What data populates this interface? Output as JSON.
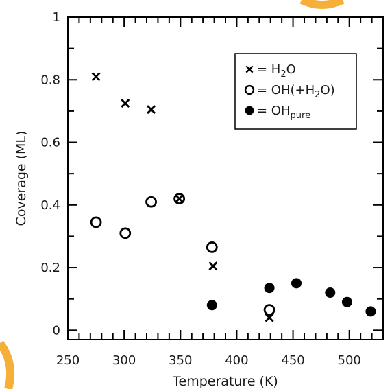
{
  "chart_data": {
    "type": "scatter",
    "xlabel": "Temperature (K)",
    "ylabel": "Coverage (ML)",
    "xlim": [
      250,
      530
    ],
    "ylim": [
      -0.03,
      1.0
    ],
    "xticks": [
      250,
      300,
      350,
      400,
      450,
      500
    ],
    "yticks": [
      0,
      0.2,
      0.4,
      0.6,
      0.8,
      1
    ],
    "xtick_labels": [
      "250",
      "300",
      "350",
      "400",
      "450",
      "500"
    ],
    "ytick_labels": [
      "0",
      "0.2",
      "0.4",
      "0.6",
      "0.8",
      "1"
    ],
    "grid": false,
    "legend_position": "top-right",
    "series": [
      {
        "key": "h2o",
        "marker": "cross",
        "legend": {
          "prefix": "= H",
          "sub": "2",
          "suffix": "O"
        },
        "points": [
          [
            275,
            0.81
          ],
          [
            301,
            0.725
          ],
          [
            324,
            0.705
          ],
          [
            349,
            0.42
          ],
          [
            379,
            0.205
          ],
          [
            429,
            0.04
          ]
        ]
      },
      {
        "key": "oh_h2o",
        "marker": "open-circle",
        "legend": {
          "prefix": "= OH(+H",
          "sub": "2",
          "suffix": "O)"
        },
        "points": [
          [
            275,
            0.345
          ],
          [
            301,
            0.31
          ],
          [
            324,
            0.41
          ],
          [
            349,
            0.42
          ],
          [
            378,
            0.265
          ],
          [
            429,
            0.065
          ]
        ]
      },
      {
        "key": "oh_pure",
        "marker": "filled-circle",
        "legend": {
          "prefix": "= OH",
          "sub": "pure",
          "suffix": ""
        },
        "points": [
          [
            378,
            0.08
          ],
          [
            429,
            0.135
          ],
          [
            453,
            0.15
          ],
          [
            483,
            0.12
          ],
          [
            498,
            0.09
          ],
          [
            519,
            0.06
          ]
        ]
      }
    ]
  },
  "colors": {
    "marker": "#000000",
    "axis": "#000000",
    "text": "#1a1a1a",
    "watermark": "#f5a623"
  }
}
